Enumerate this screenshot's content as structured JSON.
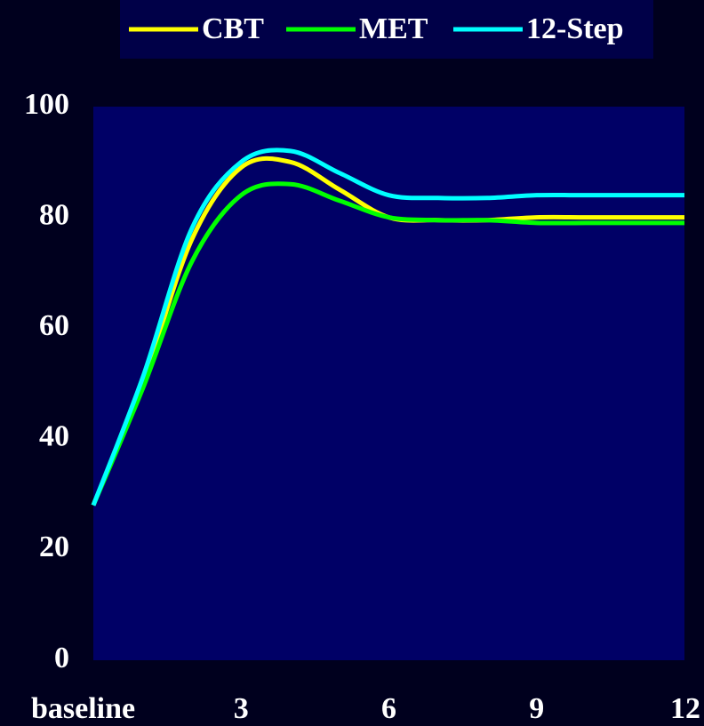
{
  "chart_data": {
    "type": "line",
    "x": [
      0,
      1,
      2,
      3,
      4,
      5,
      6,
      7,
      8,
      9,
      10,
      11,
      12
    ],
    "series": [
      {
        "name": "CBT",
        "color": "#ffff00",
        "values": [
          28,
          50,
          76,
          89,
          90,
          85,
          80,
          79.5,
          79.5,
          80,
          80,
          80,
          80
        ]
      },
      {
        "name": "MET",
        "color": "#00ff00",
        "values": [
          28,
          49,
          72,
          84,
          86,
          83,
          80,
          79.5,
          79.5,
          79,
          79,
          79,
          79
        ]
      },
      {
        "name": "12-Step",
        "color": "#00ffff",
        "values": [
          28,
          51,
          78,
          90,
          92,
          88,
          84,
          83.5,
          83.5,
          84,
          84,
          84,
          84
        ]
      }
    ],
    "xlim": [
      0,
      12
    ],
    "xticks": [
      {
        "value": 0,
        "label": "baseline"
      },
      3,
      6,
      9,
      12
    ],
    "ylim": [
      0,
      100
    ],
    "yticks": [
      0,
      20,
      40,
      60,
      80,
      100
    ],
    "plot_color": "#000066",
    "legend": "top"
  }
}
